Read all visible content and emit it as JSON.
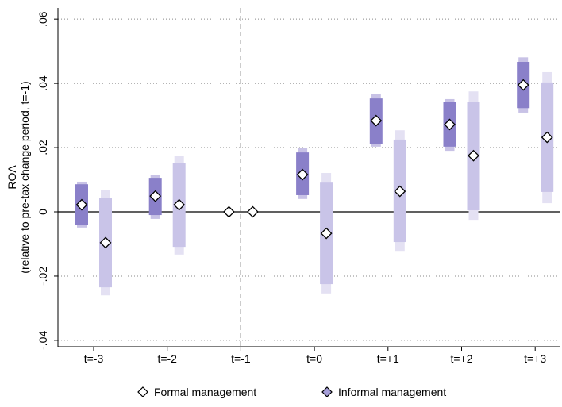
{
  "chart_data": {
    "type": "coefplot",
    "y_label": [
      "ROA",
      "(relative to pre-tax change period, t=-1)"
    ],
    "categories": [
      "t=-3",
      "t=-2",
      "t=-1",
      "t=0",
      "t=+1",
      "t=+2",
      "t=+3"
    ],
    "reference_line": "t=-1",
    "series": [
      {
        "name": "Formal management",
        "color": "#8a80c9",
        "outer_color": "#c8c2e6",
        "marker_color": "#ffffff",
        "values": [
          0.0022,
          0.0049,
          0,
          0.0116,
          0.0284,
          0.0272,
          0.0395
        ],
        "ci95_low": [
          -0.0049,
          -0.0022,
          null,
          0.004,
          0.0203,
          0.019,
          0.0309
        ],
        "ci95_high": [
          0.0094,
          0.0116,
          null,
          0.0198,
          0.0366,
          0.0351,
          0.0481
        ],
        "ci90_low": [
          -0.0042,
          -0.001,
          null,
          0.0052,
          0.0212,
          0.0203,
          0.0323
        ],
        "ci90_high": [
          0.0086,
          0.0106,
          null,
          0.0185,
          0.0353,
          0.0341,
          0.0467
        ]
      },
      {
        "name": "Informal management",
        "color": "#c9c4e8",
        "outer_color": "#e4e1f3",
        "marker_color": "#a59ed8",
        "values": [
          -0.0096,
          0.0022,
          0,
          -0.0067,
          0.0064,
          0.0175,
          0.0232
        ],
        "ci95_low": [
          -0.026,
          -0.0133,
          null,
          -0.0254,
          -0.0124,
          -0.0025,
          0.0027
        ],
        "ci95_high": [
          0.0067,
          0.0175,
          null,
          0.0121,
          0.0254,
          0.0375,
          0.0435
        ],
        "ci90_low": [
          -0.0235,
          -0.0109,
          null,
          -0.0225,
          -0.0094,
          0.0005,
          0.0062
        ],
        "ci90_high": [
          0.0044,
          0.0151,
          null,
          0.0091,
          0.0225,
          0.0343,
          0.0403
        ]
      }
    ],
    "ylim": [
      -0.042,
      0.0635
    ],
    "yticks": [
      {
        "value": -0.04,
        "label": "-.04"
      },
      {
        "value": -0.02,
        "label": "-.02"
      },
      0,
      {
        "value": 0.02,
        "label": ".02"
      },
      {
        "value": 0.04,
        "label": ".04"
      },
      {
        "value": 0.06,
        "label": ".06"
      }
    ],
    "grid": true
  }
}
